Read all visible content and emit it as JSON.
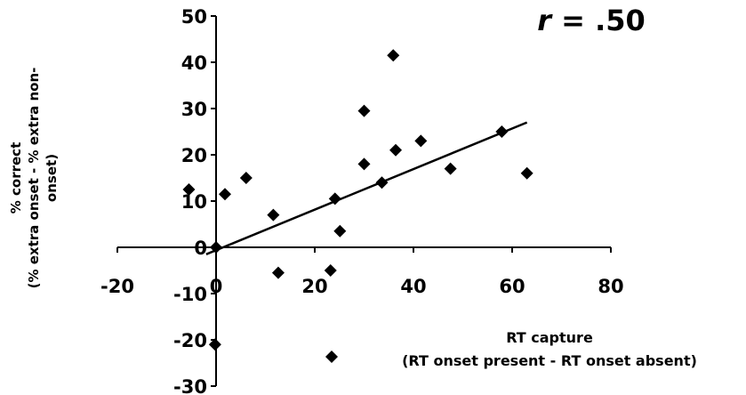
{
  "chart_data": {
    "type": "scatter",
    "annotation": {
      "italic": "r",
      "rest": " = .50"
    },
    "ylabel_lines": [
      "% correct",
      "(% extra onset - % extra non-",
      "onset)"
    ],
    "xlabel_lines": [
      "RT capture",
      "(RT onset present - RT onset absent)"
    ],
    "xlim": [
      -20,
      80
    ],
    "ylim": [
      -30,
      50
    ],
    "xticks": [
      -20,
      0,
      20,
      40,
      60,
      80
    ],
    "yticks": [
      -30,
      -20,
      -10,
      0,
      10,
      20,
      30,
      40,
      50
    ],
    "x_axis_at_y": 0,
    "y_axis_at_x": 0,
    "grid": false,
    "legend": "bottom-left of x-axis label (marker only)",
    "series": [
      {
        "marker": "diamond",
        "points": [
          [
            -5.5,
            12.5
          ],
          [
            1.8,
            11.5
          ],
          [
            6.1,
            15.0
          ],
          [
            11.6,
            7.0
          ],
          [
            12.6,
            -5.5
          ],
          [
            23.2,
            -5.0
          ],
          [
            24.1,
            10.5
          ],
          [
            25.1,
            3.5
          ],
          [
            30.0,
            29.5
          ],
          [
            30.0,
            18.0
          ],
          [
            33.6,
            14.0
          ],
          [
            35.9,
            41.5
          ],
          [
            36.4,
            21.0
          ],
          [
            41.5,
            23.0
          ],
          [
            47.5,
            17.0
          ],
          [
            57.9,
            25.0
          ],
          [
            63.0,
            16.0
          ],
          [
            -0.2,
            -21.0
          ],
          [
            0.0,
            0.0
          ]
        ]
      }
    ],
    "trendline": {
      "x": [
        -2,
        63
      ],
      "y": [
        -1.5,
        27
      ]
    }
  }
}
